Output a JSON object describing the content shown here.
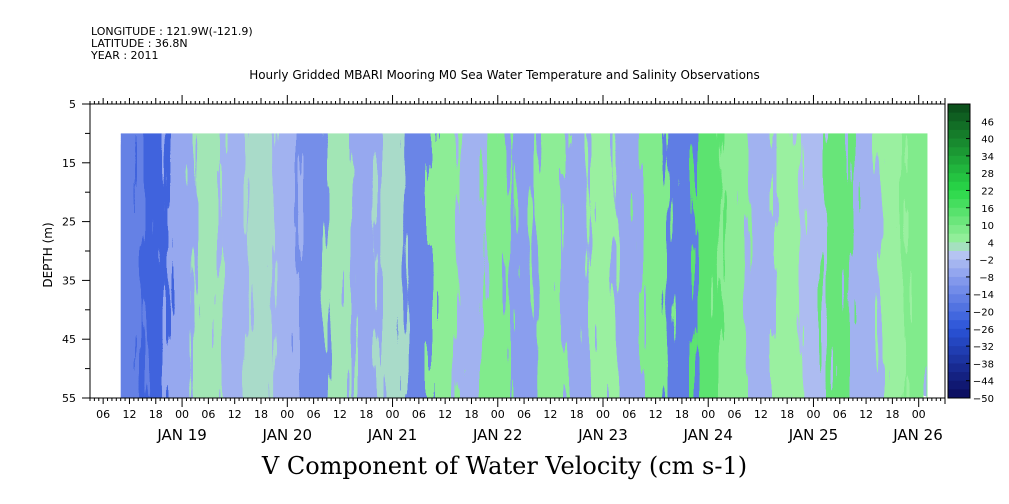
{
  "header": {
    "longitude": "LONGITUDE : 121.9W(-121.9)",
    "latitude": "LATITUDE : 36.8N",
    "year": "YEAR : 2011"
  },
  "chart_data": {
    "type": "heatmap",
    "title": "Hourly Gridded MBARI Mooring M0 Sea Water Temperature and Salinity Observations",
    "xlabel": "V Component of Water Velocity (cm s-1)",
    "ylabel": "DEPTH (m)",
    "y_range": [
      5,
      55
    ],
    "y_inverted": true,
    "data_depth_range": [
      10,
      55
    ],
    "y_ticks": [
      "5",
      "15",
      "25",
      "35",
      "45",
      "55"
    ],
    "x_range": [
      "2011-01-18T03:00",
      "2011-01-26T06:00"
    ],
    "data_time_range": [
      "2011-01-18T10:00",
      "2011-01-26T02:00"
    ],
    "x_hour_ticks": [
      "06",
      "12",
      "18",
      "00",
      "06",
      "12",
      "18",
      "00",
      "06",
      "12",
      "18",
      "00",
      "06",
      "12",
      "18",
      "00",
      "06",
      "12",
      "18",
      "00",
      "06",
      "12",
      "18",
      "00",
      "06",
      "12",
      "18",
      "00",
      "06",
      "12",
      "18",
      "00"
    ],
    "x_day_labels": [
      "JAN 19",
      "JAN 20",
      "JAN 21",
      "JAN 22",
      "JAN 23",
      "JAN 24",
      "JAN 25",
      "JAN 26"
    ],
    "colorbar_levels": [
      "46",
      "40",
      "34",
      "28",
      "22",
      "16",
      "10",
      "4",
      "-2",
      "-8",
      "-14",
      "-20",
      "-26",
      "-32",
      "-38",
      "-44",
      "-50"
    ],
    "colorbar_range": [
      -50,
      52
    ],
    "colorbar_colors": {
      "min": "#0a0a5a",
      "neg_mid": "#2a54d8",
      "neg_low": "#8a9eee",
      "zero": "#b8c6f2",
      "pos_low": "#9af0a0",
      "pos_mid": "#28d848",
      "max": "#0a4a1a"
    },
    "velocity_bands": [
      {
        "time": "2011-01-18T12:00",
        "v": -15
      },
      {
        "time": "2011-01-18T18:00",
        "v": -22
      },
      {
        "time": "2011-01-19T00:00",
        "v": -6
      },
      {
        "time": "2011-01-19T06:00",
        "v": 3
      },
      {
        "time": "2011-01-19T12:00",
        "v": -4
      },
      {
        "time": "2011-01-19T18:00",
        "v": 2
      },
      {
        "time": "2011-01-20T00:00",
        "v": -4
      },
      {
        "time": "2011-01-20T06:00",
        "v": -12
      },
      {
        "time": "2011-01-20T12:00",
        "v": 3
      },
      {
        "time": "2011-01-20T18:00",
        "v": -6
      },
      {
        "time": "2011-01-21T00:00",
        "v": 2
      },
      {
        "time": "2011-01-21T06:00",
        "v": -14
      },
      {
        "time": "2011-01-21T12:00",
        "v": 6
      },
      {
        "time": "2011-01-21T18:00",
        "v": -4
      },
      {
        "time": "2011-01-22T00:00",
        "v": 8
      },
      {
        "time": "2011-01-22T06:00",
        "v": -8
      },
      {
        "time": "2011-01-22T12:00",
        "v": 6
      },
      {
        "time": "2011-01-22T18:00",
        "v": -6
      },
      {
        "time": "2011-01-23T00:00",
        "v": 4
      },
      {
        "time": "2011-01-23T06:00",
        "v": -6
      },
      {
        "time": "2011-01-23T12:00",
        "v": 8
      },
      {
        "time": "2011-01-23T18:00",
        "v": -16
      },
      {
        "time": "2011-01-24T00:00",
        "v": 14
      },
      {
        "time": "2011-01-24T06:00",
        "v": 6
      },
      {
        "time": "2011-01-24T12:00",
        "v": -4
      },
      {
        "time": "2011-01-24T18:00",
        "v": 4
      },
      {
        "time": "2011-01-25T00:00",
        "v": -2
      },
      {
        "time": "2011-01-25T06:00",
        "v": 12
      },
      {
        "time": "2011-01-25T12:00",
        "v": -4
      },
      {
        "time": "2011-01-25T18:00",
        "v": 4
      },
      {
        "time": "2011-01-26T00:00",
        "v": 8
      }
    ]
  }
}
